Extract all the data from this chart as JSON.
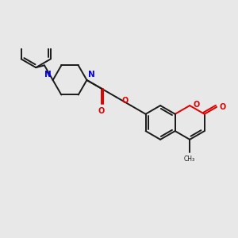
{
  "bg_color": "#e8e8e8",
  "bond_color": "#1a1a1a",
  "N_color": "#0000ee",
  "O_color": "#dd0000",
  "lw": 1.4,
  "dbo": 0.1,
  "xlim": [
    0.0,
    10.0
  ],
  "ylim": [
    1.5,
    7.5
  ],
  "figsize": [
    3.0,
    3.0
  ],
  "dpi": 100
}
